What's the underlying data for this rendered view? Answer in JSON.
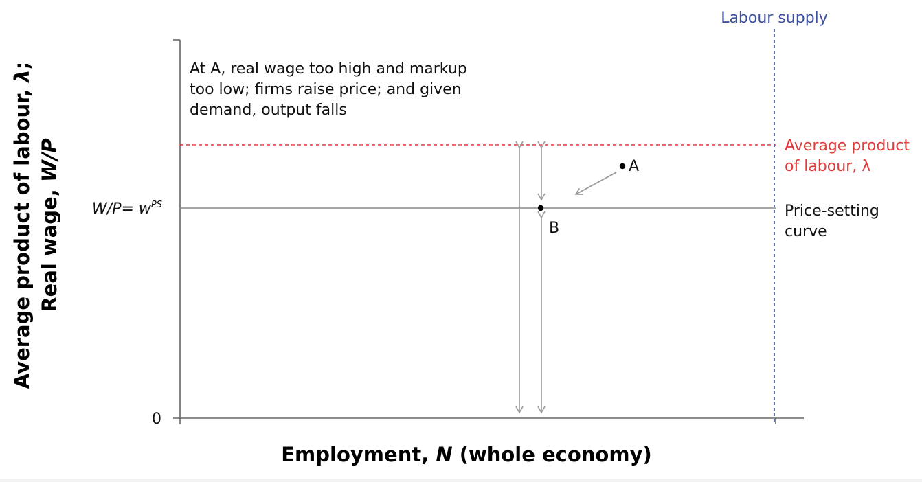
{
  "diagram": {
    "y_axis_title": {
      "line1_pre": "Average product of labour, ",
      "line1_sym": "λ",
      "line1_post": ";",
      "line2_pre": "Real wage, ",
      "line2_sym": "W/P"
    },
    "x_axis_title": {
      "pre": "Employment, ",
      "sym": "N",
      "post": " (whole economy)"
    },
    "origin_label": "0",
    "wage_label": {
      "lhs": "W/P",
      "eq": "=  ",
      "w": "w",
      "sup": "PS"
    },
    "annotation": [
      "At A, real wage too high and markup",
      "too low; firms raise price; and given",
      "demand, output falls"
    ],
    "labour_supply_label": "Labour supply",
    "avg_product_label": [
      "Average product",
      "of labour, λ"
    ],
    "price_setting_label": [
      "Price-setting",
      "curve"
    ],
    "point_a_label": "A",
    "point_b_label": "B",
    "colors": {
      "axis": "#666666",
      "price_setting": "#888888",
      "avg_product": "#e03c3c",
      "labour_supply": "#3a4fa0",
      "arrows": "#9a9a9a",
      "text": "#111111"
    }
  }
}
